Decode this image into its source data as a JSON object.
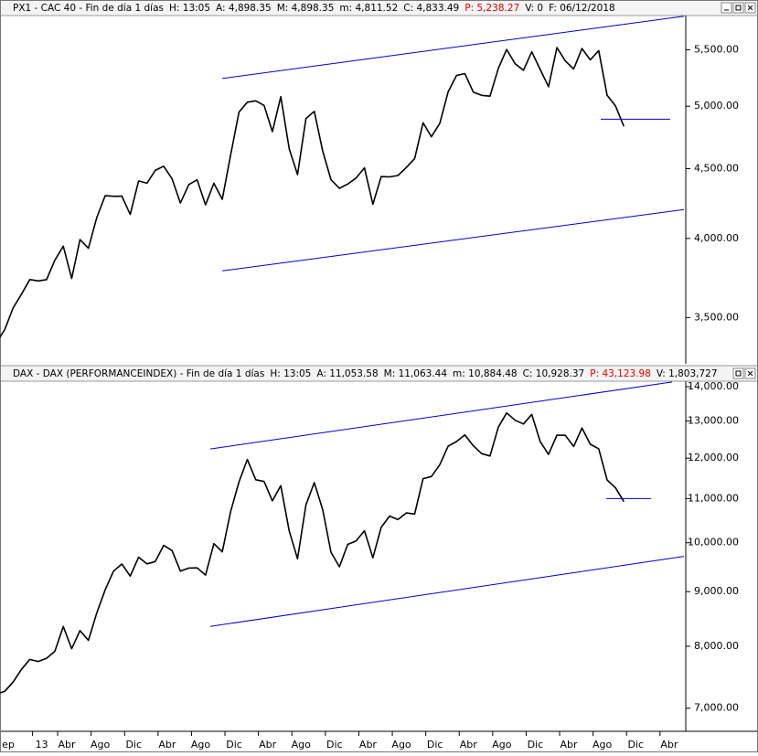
{
  "chart_data": [
    {
      "type": "line",
      "header": [
        {
          "text": "PX1 - CAC 40 - Fin de día 1 días",
          "color": "#000000"
        },
        {
          "text": "H: 13:05",
          "color": "#000000"
        },
        {
          "text": "A: 4,898.35",
          "color": "#000000"
        },
        {
          "text": "M: 4,898.35",
          "color": "#000000"
        },
        {
          "text": "m: 4,811.52",
          "color": "#000000"
        },
        {
          "text": "C: 4,833.49",
          "color": "#000000"
        },
        {
          "text": "P: 5,238.27",
          "color": "#e00000"
        },
        {
          "text": "V: 0",
          "color": "#000000"
        },
        {
          "text": "F: 06/12/2018",
          "color": "#000000"
        }
      ],
      "log_scale": true,
      "ylim": [
        3237,
        5827
      ],
      "yticks": [
        {
          "value": 3500,
          "label": "3,500.00"
        },
        {
          "value": 4000,
          "label": "4,000.00"
        },
        {
          "value": 4500,
          "label": "4,500.00"
        },
        {
          "value": 5000,
          "label": "5,000.00"
        },
        {
          "value": 5500,
          "label": "5,500.00"
        }
      ],
      "color": "#000000",
      "values": [
        3355,
        3430,
        3557,
        3641,
        3732,
        3723,
        3731,
        3856,
        3948,
        3739,
        3992,
        3934,
        4143,
        4299,
        4295,
        4296,
        4165,
        4408,
        4391,
        4487,
        4519,
        4423,
        4246,
        4381,
        4416,
        4233,
        4390,
        4273,
        4604,
        4951,
        5034,
        5046,
        5007,
        4790,
        5082,
        4653,
        4455,
        4897,
        4957,
        4637,
        4417,
        4353,
        4385,
        4429,
        4506,
        4237,
        4440,
        4438,
        4448,
        4509,
        4578,
        4862,
        4749,
        4858,
        5123,
        5267,
        5283,
        5121,
        5093,
        5086,
        5330,
        5503,
        5373,
        5313,
        5482,
        5320,
        5167,
        5521,
        5398,
        5324,
        5511,
        5407,
        5493,
        5093,
        5003,
        4833,
        null,
        null,
        null,
        null
      ],
      "trendline_color": "#0000cc",
      "trendlines": [
        {
          "values": [
            5240,
            5820
          ]
        },
        {
          "values": [
            3787,
            4200
          ]
        },
        {
          "values": [
            4892,
            4892
          ]
        }
      ]
    },
    {
      "type": "line",
      "header": [
        {
          "text": "DAX - DAX (PERFORMANCEINDEX) - Fin de día 1 días",
          "color": "#000000"
        },
        {
          "text": "H: 13:05",
          "color": "#000000"
        },
        {
          "text": "A: 11,053.58",
          "color": "#000000"
        },
        {
          "text": "M: 11,063.44",
          "color": "#000000"
        },
        {
          "text": "m: 10,884.48",
          "color": "#000000"
        },
        {
          "text": "C: 10,928.37",
          "color": "#000000"
        },
        {
          "text": "P: 43,123.98",
          "color": "#e00000"
        },
        {
          "text": "V: 1,803,727",
          "color": "#000000"
        },
        {
          "text": "F: 06/12/2018",
          "color": "#000000"
        }
      ],
      "log_scale": true,
      "ylim": [
        6660,
        14166
      ],
      "yticks": [
        {
          "value": 7000,
          "label": "7,000.00"
        },
        {
          "value": 8000,
          "label": "8,000.00"
        },
        {
          "value": 9000,
          "label": "9,000.00"
        },
        {
          "value": 10000,
          "label": "10,000.00"
        },
        {
          "value": 11000,
          "label": "11,000.00"
        },
        {
          "value": 12000,
          "label": "12,000.00"
        },
        {
          "value": 13000,
          "label": "13,000.00"
        },
        {
          "value": 14000,
          "label": "14,000.00"
        }
      ],
      "color": "#000000",
      "categories": [
        "ep",
        null,
        null,
        null,
        "13",
        null,
        null,
        "Abr",
        null,
        null,
        null,
        "Ago",
        null,
        null,
        null,
        "Dic",
        null,
        null,
        null,
        "Abr",
        null,
        null,
        null,
        "Ago",
        null,
        null,
        null,
        "Dic",
        null,
        null,
        null,
        "Abr",
        null,
        null,
        null,
        "Ago",
        null,
        null,
        null,
        "Dic",
        null,
        null,
        null,
        "Abr",
        null,
        null,
        null,
        "Ago",
        null,
        null,
        null,
        "Dic",
        null,
        null,
        null,
        "Abr",
        null,
        null,
        null,
        "Ago",
        null,
        null,
        null,
        "Dic",
        null,
        null,
        null,
        "Abr",
        null,
        null,
        null,
        "Ago",
        null,
        null,
        null,
        "Dic",
        null,
        null,
        null,
        "Abr"
      ],
      "values": [
        7216,
        7260,
        7405,
        7612,
        7776,
        7742,
        7795,
        7914,
        8349,
        7959,
        8276,
        8103,
        8594,
        9033,
        9406,
        9552,
        9306,
        9692,
        9556,
        9603,
        9943,
        9833,
        9407,
        9470,
        9474,
        9326,
        9980,
        9806,
        10694,
        11402,
        11966,
        11454,
        11413,
        10945,
        11309,
        10259,
        9660,
        10850,
        11382,
        10743,
        9798,
        9495,
        9966,
        10039,
        10263,
        9680,
        10337,
        10593,
        10511,
        10665,
        10640,
        11481,
        11535,
        11834,
        12313,
        12438,
        12615,
        12325,
        12118,
        12056,
        12829,
        13230,
        13024,
        12918,
        13189,
        12436,
        12097,
        12612,
        12605,
        12306,
        12806,
        12364,
        12247,
        11448,
        11257,
        10928,
        null,
        null,
        null,
        null
      ],
      "trendline_color": "#0000cc",
      "trendlines": [
        {
          "values": [
            12240,
            14140
          ]
        },
        {
          "values": [
            8350,
            9710
          ]
        },
        {
          "values": [
            11000,
            11000
          ]
        }
      ]
    }
  ]
}
